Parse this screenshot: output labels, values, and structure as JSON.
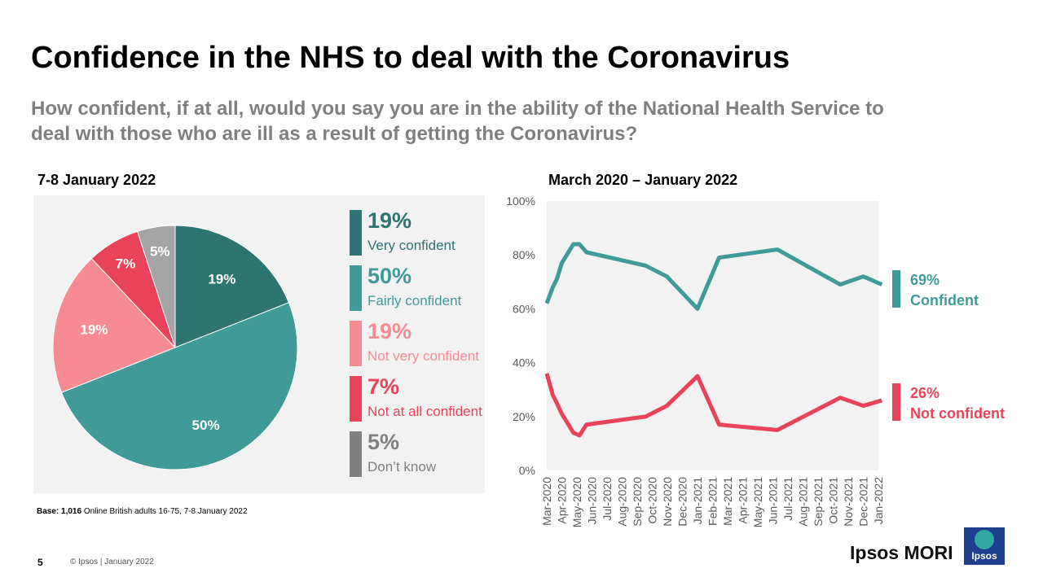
{
  "header": {
    "title": "Confidence in the NHS to deal with the Coronavirus",
    "subtitle": "How confident, if at all, would you say you are in the ability of the National Health Service to deal with those who are ill as a result of getting the Coronavirus?"
  },
  "chart_data": [
    {
      "type": "pie",
      "title": "7-8 January 2022",
      "slices": [
        {
          "name": "Very confident",
          "value": 19,
          "label": "19%",
          "color": "#2e7470"
        },
        {
          "name": "Fairly confident",
          "value": 50,
          "label": "50%",
          "color": "#3f9a98"
        },
        {
          "name": "Not very confident",
          "value": 19,
          "label": "19%",
          "color": "#f68b93"
        },
        {
          "name": "Not at all confident",
          "value": 7,
          "label": "7%",
          "color": "#e8435a"
        },
        {
          "name": "Don’t know",
          "value": 5,
          "label": "5%",
          "color": "#a5a5a5"
        }
      ],
      "legend_colors": [
        "#2e7470",
        "#3f9a98",
        "#f68b93",
        "#e8435a",
        "#7f7f7f"
      ],
      "legend": "right"
    },
    {
      "type": "line",
      "title": "March 2020 – January 2022",
      "ylim": [
        0,
        100
      ],
      "yticks": [
        "0%",
        "20%",
        "40%",
        "60%",
        "80%",
        "100%"
      ],
      "xticks": [
        "Mar-2020",
        "Apr-2020",
        "May-2020",
        "Jun-2020",
        "Jul-2020",
        "Aug-2020",
        "Sep-2020",
        "Oct-2020",
        "Nov-2020",
        "Dec-2020",
        "Jan-2021",
        "Feb-2021",
        "Mar-2021",
        "Apr-2021",
        "May-2021",
        "Jun-2021",
        "Jul-2021",
        "Aug-2021",
        "Sep-2021",
        "Oct-2021",
        "Nov-2021",
        "Dec-2021",
        "Jan-2022"
      ],
      "x": [
        "2020-03-01",
        "2020-03-13",
        "2020-03-21",
        "2020-04-01",
        "2020-04-24",
        "2020-05-06",
        "2020-05-20",
        "2020-09-18",
        "2020-10-30",
        "2021-01-01",
        "2021-02-14",
        "2021-06-10",
        "2021-10-15",
        "2021-12-01",
        "2022-01-08"
      ],
      "series": [
        {
          "name": "Confident",
          "color": "#3f9a98",
          "values": [
            62,
            68,
            71,
            77,
            84,
            84,
            81,
            76,
            72,
            60,
            79,
            82,
            69,
            72,
            69
          ],
          "end_label": "69%"
        },
        {
          "name": "Not confident",
          "color": "#e8435a",
          "values": [
            36,
            28,
            25,
            21,
            14,
            13,
            17,
            20,
            24,
            35,
            17,
            15,
            27,
            24,
            26
          ],
          "end_label": "26%"
        }
      ],
      "grid": false,
      "legend": "right"
    }
  ],
  "footer": {
    "base_bold": "Base: 1,016",
    "base_rest": " Online British adults 16-75, 7-8 January 2022",
    "page": "5",
    "copyright": "© Ipsos | January 2022",
    "brand": "Ipsos MORI",
    "logo_text": "Ipsos"
  }
}
